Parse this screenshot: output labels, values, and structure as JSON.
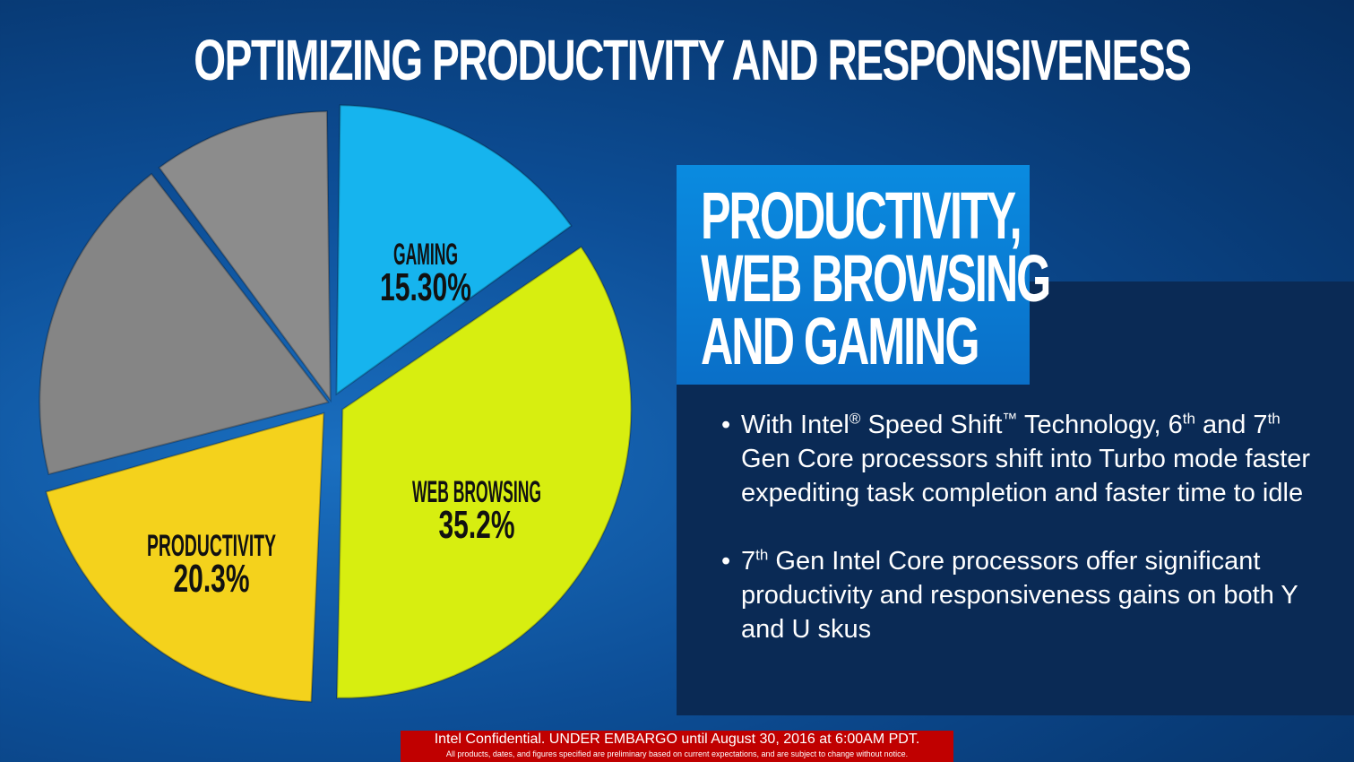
{
  "title": "OPTIMIZING PRODUCTIVITY AND RESPONSIVENESS",
  "box": {
    "lines": [
      "PRODUCTIVITY,",
      "WEB BROWSING",
      "AND GAMING"
    ]
  },
  "bullets": [
    {
      "a": "With Intel",
      "reg": "®",
      "b": " Speed Shift",
      "tm": "™",
      "c": " Technology, 6",
      "th1": "th",
      "d": " and 7",
      "th2": "th",
      "e": " Gen Core processors shift into Turbo mode faster expediting task completion and faster time to idle"
    },
    {
      "a": "7",
      "th": "th",
      "b": " Gen Intel Core processors offer significant productivity and responsiveness gains on both Y and U skus"
    }
  ],
  "footer": {
    "line1": "Intel Confidential. UNDER EMBARGO until August 30, 2016 at 6:00AM PDT.",
    "line2": "All products, dates, and figures specified are preliminary based on current expectations, and are subject to change without notice."
  },
  "chart_data": {
    "type": "pie",
    "slices": [
      {
        "label": "GAMING",
        "value_label": "15.30%",
        "value": 15.3,
        "color": "#16b4ee"
      },
      {
        "label": "WEB BROWSING",
        "value_label": "35.2%",
        "value": 35.2,
        "color": "#d7ee10"
      },
      {
        "label": "PRODUCTIVITY",
        "value_label": "20.3%",
        "value": 20.3,
        "color": "#f4d21c"
      },
      {
        "label": "",
        "value_label": "",
        "value": 18.9,
        "color": "#858585"
      },
      {
        "label": "",
        "value_label": "",
        "value": 10.3,
        "color": "#8c8c8c"
      }
    ]
  }
}
